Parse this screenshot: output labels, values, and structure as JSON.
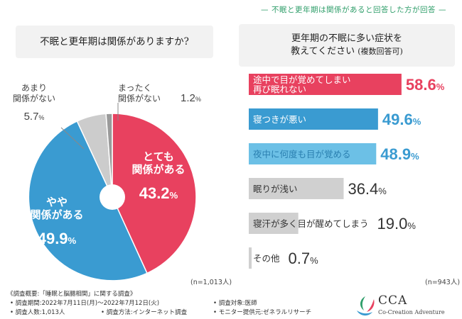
{
  "header": {
    "note": "不眠と更年期は関係があると回答した方が回答",
    "dash": "—"
  },
  "left": {
    "question": "不眠と更年期は関係がありますか?",
    "n": "(n=1,013人)"
  },
  "right": {
    "question_line1": "更年期の不眠に多い症状を",
    "question_line2": "教えてください",
    "question_sub": "(複数回答可)",
    "n": "(n=943人)"
  },
  "chart_data": [
    {
      "type": "pie",
      "title": "不眠と更年期は関係がありますか?",
      "categories": [
        "とても関係がある",
        "やや関係がある",
        "あまり関係がない",
        "まったく関係がない"
      ],
      "values": [
        43.2,
        49.9,
        5.7,
        1.2
      ],
      "unit": "%",
      "colors": [
        "#e8415f",
        "#3a9bd1",
        "#cccccc",
        "#9a9a9a"
      ],
      "labels": [
        {
          "lines": [
            "とても",
            "関係がある"
          ],
          "value": "43.2%",
          "color": "#ffffff"
        },
        {
          "lines": [
            "やや",
            "関係がある"
          ],
          "value": "49.9%",
          "color": "#ffffff"
        },
        {
          "lines": [
            "あまり",
            "関係がない"
          ],
          "value": "5.7%",
          "color": "#444444"
        },
        {
          "lines": [
            "まったく",
            "関係がない"
          ],
          "value": "1.2%",
          "color": "#444444"
        }
      ]
    },
    {
      "type": "bar",
      "orientation": "horizontal",
      "title": "更年期の不眠に多い症状を教えてください(複数回答可)",
      "categories": [
        "途中で目が覚めてしまい再び眠れない",
        "寝つきが悪い",
        "夜中に何度も目が覚める",
        "眠りが浅い",
        "寝汗が多く目が醒めてしまう",
        "その他"
      ],
      "category_lines": [
        [
          "途中で目が覚めてしまい",
          "再び眠れない"
        ],
        [
          "寝つきが悪い"
        ],
        [
          "夜中に何度も目が覚める"
        ],
        [
          "眠りが浅い"
        ],
        [
          "寝汗が多く目が醒めてしまう"
        ],
        [
          "その他"
        ]
      ],
      "values": [
        58.6,
        49.6,
        48.9,
        36.4,
        19.0,
        0.7
      ],
      "value_labels": [
        "58.6%",
        "49.6%",
        "48.9%",
        "36.4%",
        "19.0%",
        "0.7%"
      ],
      "unit": "%",
      "colors": [
        "#e8415f",
        "#3a9bd1",
        "#6cc0e6",
        "#d0d0d0",
        "#d0d0d0",
        "#d0d0d0"
      ],
      "label_colors": [
        "#ffffff",
        "#ffffff",
        "#2a7fb0",
        "#333333",
        "#333333",
        "#333333"
      ],
      "value_colors": [
        "#e8415f",
        "#3a9bd1",
        "#3a9bd1",
        "#333333",
        "#333333",
        "#333333"
      ]
    }
  ],
  "footer": {
    "title": "《調査概要:「睡眠と脳腸相関」に関する調査》",
    "period": "• 調査期間:2022年7月11日(月)〜2022年7月12日(火)",
    "count": "• 調査人数:1,013人",
    "method": "• 調査方法:インターネット調査",
    "target": "• 調査対象:医師",
    "provider": "• モニター提供元:ゼネラルリサーチ"
  },
  "logo": {
    "name": "CCA",
    "tagline": "Co-Creation Adventure",
    "colors": [
      "#2f9e6a",
      "#e8415f",
      "#3a9bd1"
    ]
  }
}
